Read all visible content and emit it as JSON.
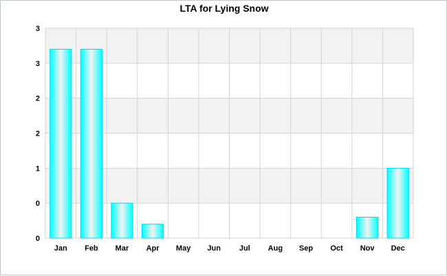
{
  "chart_data": {
    "type": "bar",
    "title": "LTA for Lying Snow",
    "categories": [
      "Jan",
      "Feb",
      "Mar",
      "Apr",
      "May",
      "Jun",
      "Jul",
      "Aug",
      "Sep",
      "Oct",
      "Nov",
      "Dec"
    ],
    "values": [
      2.7,
      2.7,
      0.5,
      0.2,
      0,
      0,
      0,
      0,
      0,
      0,
      0.3,
      1.0
    ],
    "yticks": [
      "0",
      "0",
      "1",
      "2",
      "2",
      "3",
      "3"
    ],
    "ylim": [
      0,
      3
    ],
    "xlabel": "",
    "ylabel": "",
    "grid": "vertical and horizontal lines, alternating grey/white horizontal bands",
    "legend": "none",
    "colors": {
      "bar_edge": "#00d8ff",
      "bar_light": "#f2f2f2",
      "bar_main": "#00ffff",
      "band": "#f2f2f2",
      "gridline": "#d3d3d3",
      "frame": "#bfc7d1"
    }
  }
}
